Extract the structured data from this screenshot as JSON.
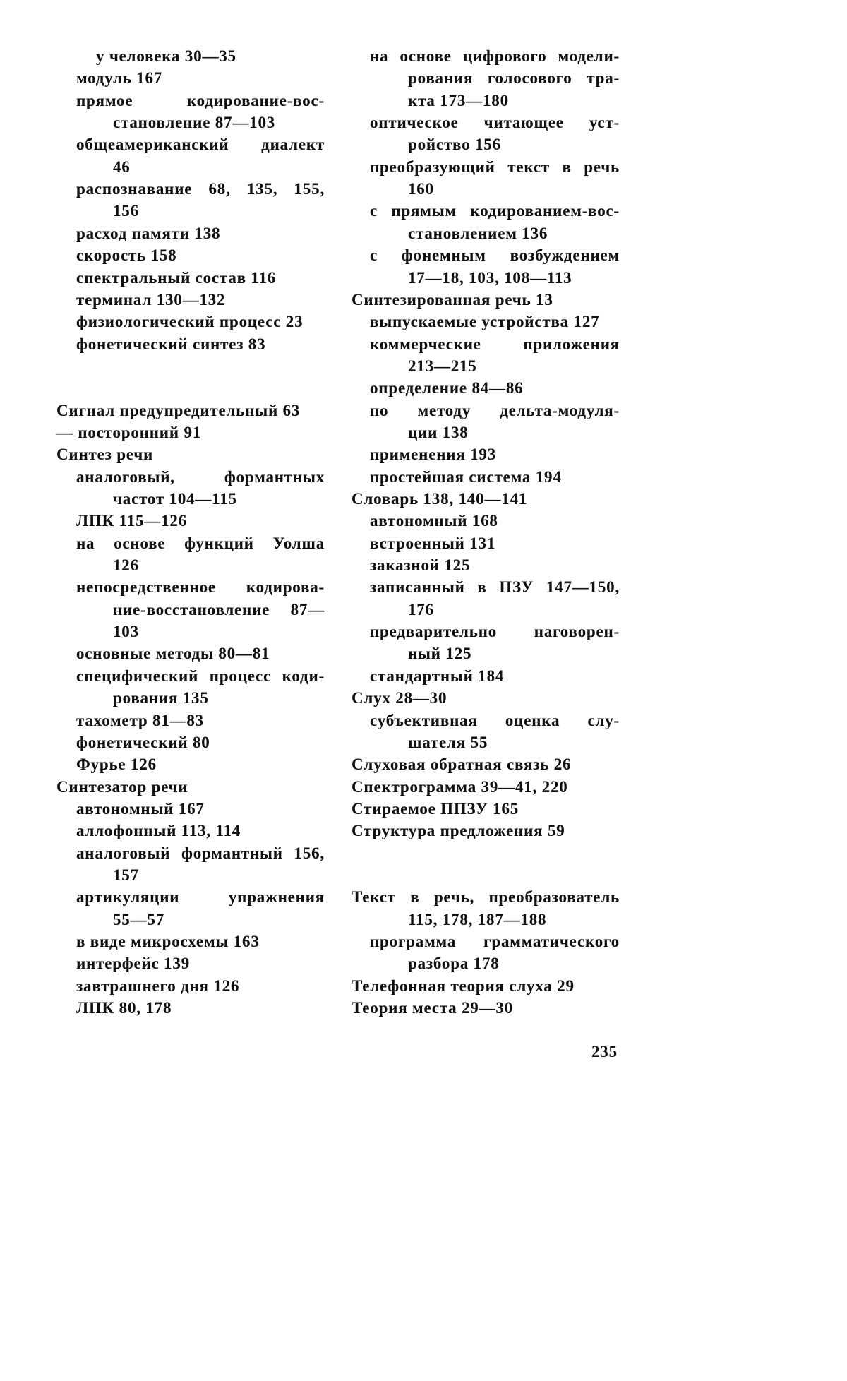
{
  "page_number": "235",
  "columns": [
    {
      "sections": [
        [
          {
            "kind": "cont0",
            "text": "у человека 30—35"
          },
          {
            "kind": "sub",
            "text": "модуль 167"
          },
          {
            "kind": "sub",
            "text": "прямое кодирование-вос-"
          },
          {
            "kind": "cont",
            "text": "становление 87—103"
          },
          {
            "kind": "sub",
            "text": "общеамериканский диалект"
          },
          {
            "kind": "cont",
            "text": "46"
          },
          {
            "kind": "sub",
            "text": "распознавание 68, 135, 155,"
          },
          {
            "kind": "cont",
            "text": "156"
          },
          {
            "kind": "sub",
            "text": "расход памяти 138"
          },
          {
            "kind": "sub",
            "text": "скорость 158"
          },
          {
            "kind": "sub",
            "text": "спектральный состав 116"
          },
          {
            "kind": "sub",
            "text": "терминал 130—132"
          },
          {
            "kind": "sub",
            "text": "физиологический процесс 23"
          },
          {
            "kind": "sub",
            "text": "фонетический синтез 83"
          }
        ],
        [
          {
            "kind": "main",
            "text": "Сигнал предупредительный 63"
          },
          {
            "kind": "main",
            "text": "— посторонний 91"
          },
          {
            "kind": "main",
            "text": "Синтез речи"
          },
          {
            "kind": "sub",
            "text": "аналоговый, формантных"
          },
          {
            "kind": "cont",
            "text": "частот 104—115"
          },
          {
            "kind": "sub",
            "text": "ЛПК 115—126"
          },
          {
            "kind": "sub",
            "text": "на основе функций Уолша"
          },
          {
            "kind": "cont",
            "text": "126"
          },
          {
            "kind": "sub",
            "text": "непосредственное кодирова-"
          },
          {
            "kind": "cont",
            "text": "ние-восстановление 87—"
          },
          {
            "kind": "cont",
            "text": "103"
          },
          {
            "kind": "sub",
            "text": "основные методы 80—81"
          },
          {
            "kind": "sub",
            "text": "специфический процесс коди-"
          },
          {
            "kind": "cont",
            "text": "рования 135"
          },
          {
            "kind": "sub",
            "text": "тахометр 81—83"
          },
          {
            "kind": "sub",
            "text": "фонетический 80"
          },
          {
            "kind": "sub",
            "text": "Фурье 126"
          },
          {
            "kind": "main",
            "text": "Синтезатор речи"
          },
          {
            "kind": "sub",
            "text": "автономный 167"
          },
          {
            "kind": "sub",
            "text": "аллофонный 113, 114"
          },
          {
            "kind": "sub",
            "text": "аналоговый формантный 156,"
          },
          {
            "kind": "cont",
            "text": "157"
          },
          {
            "kind": "sub",
            "text": "артикуляции упражнения"
          },
          {
            "kind": "cont",
            "text": "55—57"
          },
          {
            "kind": "sub",
            "text": "в виде микросхемы 163"
          },
          {
            "kind": "sub",
            "text": "интерфейс 139"
          },
          {
            "kind": "sub",
            "text": "завтрашнего дня 126"
          },
          {
            "kind": "sub",
            "text": "ЛПК 80, 178"
          }
        ]
      ]
    },
    {
      "sections": [
        [
          {
            "kind": "sub",
            "text": "на основе цифрового модели-"
          },
          {
            "kind": "cont",
            "text": "рования голосового тра-"
          },
          {
            "kind": "cont",
            "text": "кта 173—180"
          },
          {
            "kind": "sub",
            "text": "оптическое читающее уст-"
          },
          {
            "kind": "cont",
            "text": "ройство 156"
          },
          {
            "kind": "sub",
            "text": "преобразующий текст в речь"
          },
          {
            "kind": "cont",
            "text": "160"
          },
          {
            "kind": "sub",
            "text": "с прямым кодированием-вос-"
          },
          {
            "kind": "cont",
            "text": "становлением 136"
          },
          {
            "kind": "sub",
            "text": "с фонемным возбуждением"
          },
          {
            "kind": "cont",
            "text": "17—18, 103, 108—113"
          },
          {
            "kind": "main",
            "text": "Синтезированная речь 13"
          },
          {
            "kind": "sub",
            "text": "выпускаемые устройства 127"
          },
          {
            "kind": "sub",
            "text": "коммерческие приложения"
          },
          {
            "kind": "cont",
            "text": "213—215"
          },
          {
            "kind": "sub",
            "text": "определение 84—86"
          },
          {
            "kind": "sub",
            "text": "по методу дельта-модуля-"
          },
          {
            "kind": "cont",
            "text": "ции 138"
          },
          {
            "kind": "sub",
            "text": "применения 193"
          },
          {
            "kind": "sub",
            "text": "простейшая система 194"
          },
          {
            "kind": "main",
            "text": "Словарь 138, 140—141"
          },
          {
            "kind": "sub",
            "text": "автономный 168"
          },
          {
            "kind": "sub",
            "text": "встроенный 131"
          },
          {
            "kind": "sub",
            "text": "заказной 125"
          },
          {
            "kind": "sub",
            "text": "записанный в ПЗУ 147—150,"
          },
          {
            "kind": "cont",
            "text": "176"
          },
          {
            "kind": "sub",
            "text": "предварительно наговорен-"
          },
          {
            "kind": "cont",
            "text": "ный 125"
          },
          {
            "kind": "sub",
            "text": "стандартный 184"
          },
          {
            "kind": "main",
            "text": "Слух 28—30"
          },
          {
            "kind": "sub",
            "text": "субъективная оценка слу-"
          },
          {
            "kind": "cont",
            "text": "шателя 55"
          },
          {
            "kind": "main",
            "text": "Слуховая обратная связь 26"
          },
          {
            "kind": "main",
            "text": "Спектрограмма 39—41, 220"
          },
          {
            "kind": "main",
            "text": "Стираемое ППЗУ 165"
          },
          {
            "kind": "main",
            "text": "Структура предложения 59"
          }
        ],
        [
          {
            "kind": "main",
            "text": "Текст в речь, преобразователь"
          },
          {
            "kind": "cont",
            "text": "115, 178, 187—188"
          },
          {
            "kind": "sub",
            "text": "программа грамматического"
          },
          {
            "kind": "cont",
            "text": "разбора 178"
          },
          {
            "kind": "main",
            "text": "Телефонная теория слуха 29"
          },
          {
            "kind": "main",
            "text": "Теория места 29—30"
          }
        ]
      ]
    }
  ]
}
